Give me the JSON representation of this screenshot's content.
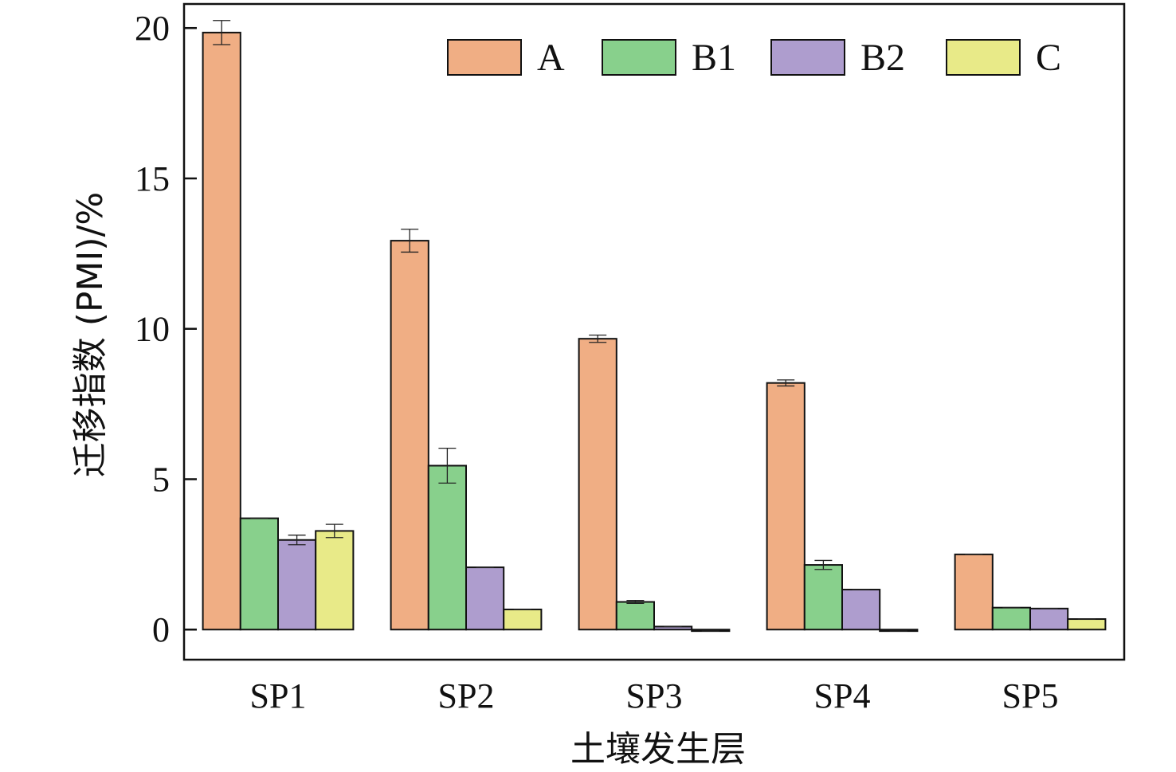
{
  "chart_data": {
    "type": "bar",
    "title": "",
    "xlabel": "土壤发生层",
    "ylabel": "迁移指数 (PMI)/%",
    "categories": [
      "SP1",
      "SP2",
      "SP3",
      "SP4",
      "SP5"
    ],
    "ylim": [
      -1,
      20.8
    ],
    "yticks": [
      0,
      5,
      10,
      15,
      20
    ],
    "grid": false,
    "legend_position": "top-right",
    "series": [
      {
        "name": "A",
        "color": "#F0AE84",
        "values": [
          19.85,
          12.93,
          9.67,
          8.2,
          2.5
        ],
        "errors": [
          0.4,
          0.38,
          0.12,
          0.1,
          0
        ]
      },
      {
        "name": "B1",
        "color": "#88D08C",
        "values": [
          3.7,
          5.45,
          0.92,
          2.15,
          0.73
        ],
        "errors": [
          0,
          0.58,
          0.05,
          0.15,
          0
        ]
      },
      {
        "name": "B2",
        "color": "#AE9DCE",
        "values": [
          2.98,
          2.07,
          0.1,
          1.33,
          0.7
        ],
        "errors": [
          0.16,
          0,
          0,
          0,
          0
        ]
      },
      {
        "name": "C",
        "color": "#E8EA88",
        "values": [
          3.28,
          0.67,
          -0.05,
          -0.05,
          0.35
        ],
        "errors": [
          0.22,
          0,
          0,
          0,
          0
        ]
      }
    ]
  }
}
